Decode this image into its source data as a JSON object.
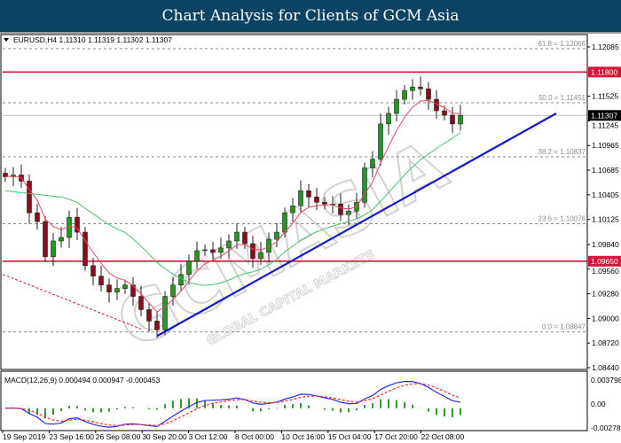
{
  "header": {
    "title": "Chart Analysis for Clients of GCM Asia"
  },
  "symbol_info": "EURUSD,H4  1.11310 1.11319 1.11302 1.11307",
  "macd_info": "MACD(12,26,9) 0.000494 0.000947 -0.000453",
  "watermark": {
    "main": "GCMASIA",
    "sub": "GLOBAL CAPITAL MARKETS"
  },
  "colors": {
    "title_bg": "#0c4363",
    "bull": "#1f9a1f",
    "bear": "#8b0c1e",
    "resistance": "#d8143a",
    "trendline": "#1a1acd",
    "ma_fast": "#e8475a",
    "ma_slow": "#4cbf6a",
    "macd_main": "#2a2af0",
    "macd_signal": "#f03030",
    "macd_hist": "#2e9a2e"
  },
  "chart_data": {
    "type": "candlestick",
    "symbol": "EURUSD",
    "timeframe": "H4",
    "closes": [
      1.1061,
      1.1063,
      1.1056,
      1.102,
      1.101,
      1.097,
      1.0988,
      1.0992,
      1.1015,
      1.0998,
      1.096,
      1.0948,
      1.0938,
      1.093,
      1.0934,
      1.0938,
      1.0925,
      1.091,
      1.0897,
      1.0887,
      1.0925,
      1.0938,
      1.095,
      1.0965,
      1.0977,
      1.0978,
      1.0975,
      1.098,
      1.0988,
      1.0998,
      1.0985,
      1.0968,
      1.0975,
      1.099,
      1.0998,
      1.102,
      1.1028,
      1.1045,
      1.1038,
      1.1032,
      1.103,
      1.103,
      1.1018,
      1.1022,
      1.1032,
      1.1071,
      1.1081,
      1.1121,
      1.1133,
      1.1149,
      1.1159,
      1.1163,
      1.1161,
      1.1149,
      1.1136,
      1.1131,
      1.1121,
      1.11307
    ],
    "ylim": [
      1.0844,
      1.12085
    ],
    "y_ticks": [
      "1.12085",
      "1.11525",
      "1.11245",
      "1.10965",
      "1.10685",
      "1.10405",
      "1.10125",
      "1.09840",
      "1.09560",
      "1.09280",
      "1.09000",
      "1.08720",
      "1.08440"
    ],
    "x_ticks": [
      "19 Sep 2019",
      "23 Sep 16:00",
      "26 Sep 08:00",
      "30 Sep 20:00",
      "3 Oct 12:00",
      "8 Oct 00:00",
      "10 Oct 16:00",
      "15 Oct 04:00",
      "17 Oct 20:00",
      "22 Oct 08:00"
    ],
    "current_price": {
      "value": 1.11307,
      "label": "1.11307"
    },
    "horizontal_levels": [
      {
        "value": 1.118,
        "label": "1.11800"
      },
      {
        "value": 1.0965,
        "label": "1.09650"
      }
    ],
    "fibonacci": [
      {
        "value": 1.12066,
        "label": "61.8 = 1.12066"
      },
      {
        "value": 1.11451,
        "label": "50.0 = 1.11451"
      },
      {
        "value": 1.10837,
        "label": "38.2 = 1.10837"
      },
      {
        "value": 1.10076,
        "label": "23.6 = 1.10076"
      },
      {
        "value": 1.08847,
        "label": "0.0 = 1.08847"
      }
    ],
    "trendline": {
      "from": [
        19,
        1.088
      ],
      "to": [
        69,
        1.1133
      ]
    },
    "fib_base_line": {
      "from": [
        -0.3,
        1.095
      ],
      "to": [
        17,
        1.0888
      ]
    },
    "macd": {
      "params": "12,26,9",
      "ylim": [
        -0.002785,
        0.003798
      ],
      "y_ticks": [
        "0.003798",
        "0.00",
        "-0.002785"
      ]
    },
    "grid": false
  }
}
